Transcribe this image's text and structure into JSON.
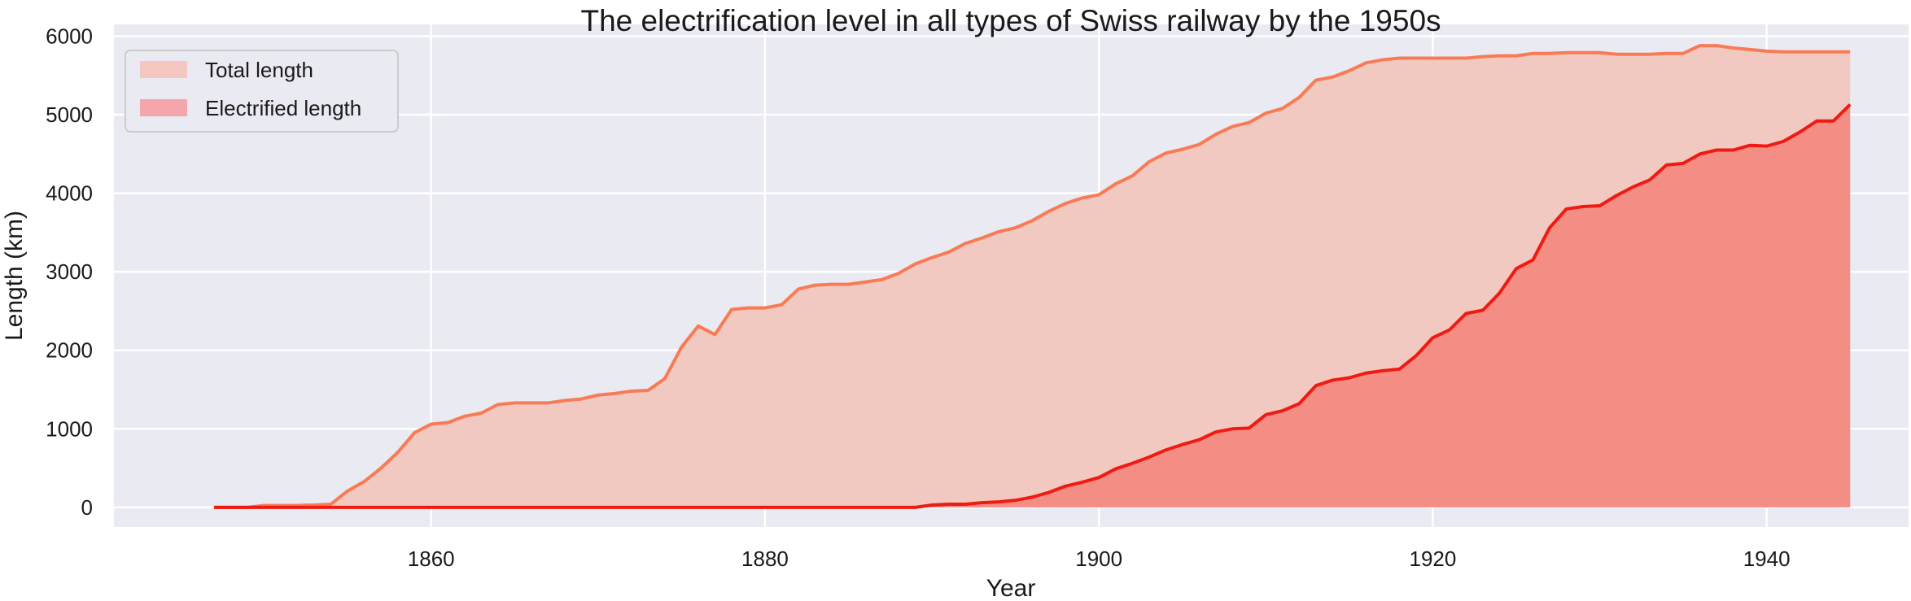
{
  "chart_data": {
    "type": "area",
    "title": "The electrification level in all types of Swiss railway by the 1950s",
    "xlabel": "Year",
    "ylabel": "Length (km)",
    "xlim": [
      1841.0,
      1948.5
    ],
    "ylim": [
      -250,
      6150
    ],
    "xticks": [
      1860,
      1880,
      1900,
      1920,
      1940
    ],
    "yticks": [
      0,
      1000,
      2000,
      3000,
      4000,
      5000,
      6000
    ],
    "grid": true,
    "legend": "top-left",
    "series": [
      {
        "name": "Total length",
        "fill": "#f2c9c1",
        "line": "#fa7a55",
        "legend_swatch": "#f4c7c0",
        "x": [
          1847,
          1848,
          1849,
          1850,
          1851,
          1852,
          1853,
          1854,
          1855,
          1856,
          1857,
          1858,
          1859,
          1860,
          1861,
          1862,
          1863,
          1864,
          1865,
          1866,
          1867,
          1868,
          1869,
          1870,
          1871,
          1872,
          1873,
          1874,
          1875,
          1876,
          1877,
          1878,
          1879,
          1880,
          1881,
          1882,
          1883,
          1884,
          1885,
          1886,
          1887,
          1888,
          1889,
          1890,
          1891,
          1892,
          1893,
          1894,
          1895,
          1896,
          1897,
          1898,
          1899,
          1900,
          1901,
          1902,
          1903,
          1904,
          1905,
          1906,
          1907,
          1908,
          1909,
          1910,
          1911,
          1912,
          1913,
          1914,
          1915,
          1916,
          1917,
          1918,
          1919,
          1920,
          1921,
          1922,
          1923,
          1924,
          1925,
          1926,
          1927,
          1928,
          1929,
          1930,
          1931,
          1932,
          1933,
          1934,
          1935,
          1936,
          1937,
          1938,
          1939,
          1940,
          1941,
          1942,
          1943,
          1944,
          1945
        ],
        "values": [
          0,
          0,
          0,
          25,
          25,
          25,
          30,
          40,
          210,
          330,
          500,
          700,
          950,
          1060,
          1080,
          1160,
          1200,
          1310,
          1330,
          1330,
          1330,
          1360,
          1380,
          1430,
          1450,
          1480,
          1490,
          1640,
          2040,
          2310,
          2200,
          2520,
          2540,
          2540,
          2580,
          2780,
          2830,
          2840,
          2840,
          2870,
          2900,
          2980,
          3100,
          3180,
          3250,
          3360,
          3430,
          3510,
          3560,
          3650,
          3770,
          3870,
          3940,
          3980,
          4120,
          4220,
          4400,
          4510,
          4560,
          4620,
          4750,
          4850,
          4900,
          5020,
          5080,
          5220,
          5440,
          5480,
          5560,
          5660,
          5700,
          5720,
          5720,
          5720,
          5720,
          5720,
          5740,
          5750,
          5750,
          5780,
          5780,
          5790,
          5790,
          5790,
          5770,
          5770,
          5770,
          5780,
          5780,
          5880,
          5880,
          5850,
          5830,
          5810,
          5800,
          5800,
          5800,
          5800,
          5800
        ]
      },
      {
        "name": "Electrified length",
        "fill": "#f48d84",
        "line": "#f11a12",
        "legend_swatch": "#f4a6ab",
        "x": [
          1847,
          1848,
          1849,
          1850,
          1851,
          1852,
          1853,
          1854,
          1855,
          1856,
          1857,
          1858,
          1859,
          1860,
          1861,
          1862,
          1863,
          1864,
          1865,
          1866,
          1867,
          1868,
          1869,
          1870,
          1871,
          1872,
          1873,
          1874,
          1875,
          1876,
          1877,
          1878,
          1879,
          1880,
          1881,
          1882,
          1883,
          1884,
          1885,
          1886,
          1887,
          1888,
          1889,
          1890,
          1891,
          1892,
          1893,
          1894,
          1895,
          1896,
          1897,
          1898,
          1899,
          1900,
          1901,
          1902,
          1903,
          1904,
          1905,
          1906,
          1907,
          1908,
          1909,
          1910,
          1911,
          1912,
          1913,
          1914,
          1915,
          1916,
          1917,
          1918,
          1919,
          1920,
          1921,
          1922,
          1923,
          1924,
          1925,
          1926,
          1927,
          1928,
          1929,
          1930,
          1931,
          1932,
          1933,
          1934,
          1935,
          1936,
          1937,
          1938,
          1939,
          1940,
          1941,
          1942,
          1943,
          1944,
          1945
        ],
        "values": [
          0,
          0,
          0,
          0,
          0,
          0,
          0,
          0,
          0,
          0,
          0,
          0,
          0,
          0,
          0,
          0,
          0,
          0,
          0,
          0,
          0,
          0,
          0,
          0,
          0,
          0,
          0,
          0,
          0,
          0,
          0,
          0,
          0,
          0,
          0,
          0,
          0,
          0,
          0,
          0,
          0,
          0,
          0,
          30,
          40,
          40,
          60,
          70,
          90,
          130,
          190,
          270,
          320,
          380,
          490,
          560,
          640,
          730,
          800,
          860,
          960,
          1000,
          1010,
          1180,
          1230,
          1320,
          1550,
          1620,
          1650,
          1710,
          1740,
          1760,
          1930,
          2160,
          2260,
          2470,
          2510,
          2730,
          3040,
          3150,
          3560,
          3800,
          3830,
          3840,
          3970,
          4080,
          4170,
          4360,
          4380,
          4500,
          4550,
          4550,
          4610,
          4600,
          4660,
          4780,
          4920,
          4920,
          5130
        ]
      }
    ]
  }
}
